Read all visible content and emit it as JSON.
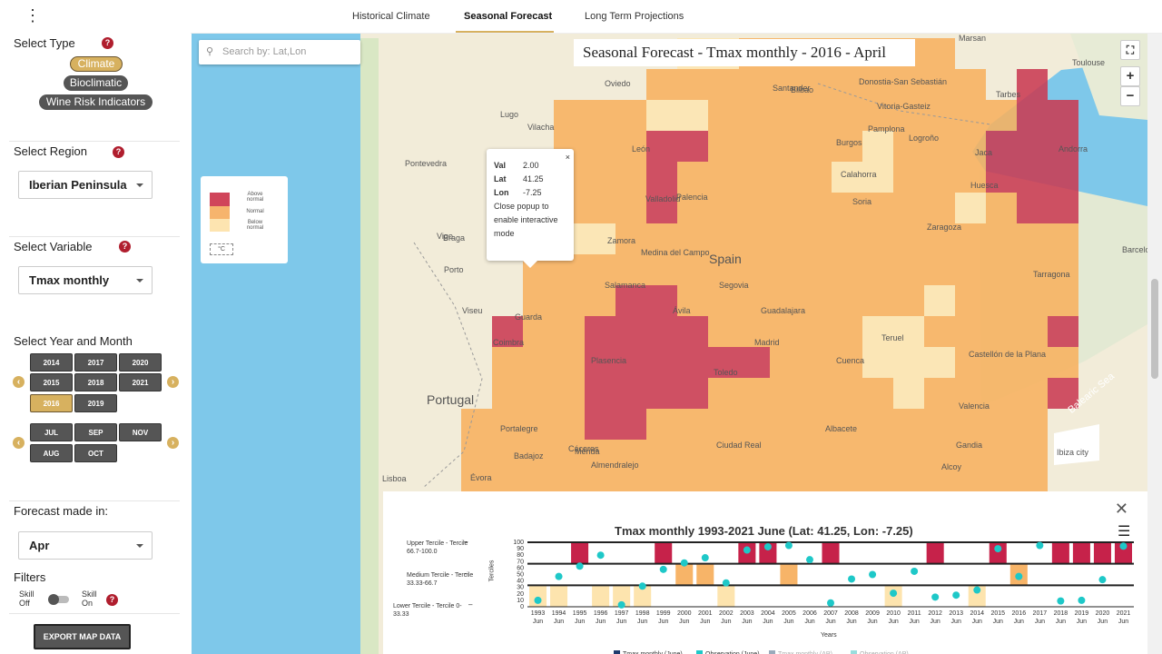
{
  "tabs": {
    "historical": "Historical Climate",
    "seasonal": "Seasonal Forecast",
    "long_term": "Long Term Projections"
  },
  "sidebar": {
    "select_type": {
      "label": "Select Type",
      "options": [
        "Climate",
        "Bioclimatic",
        "Wine Risk Indicators"
      ],
      "selected": "Climate"
    },
    "select_region": {
      "label": "Select Region",
      "value": "Iberian Peninsula"
    },
    "select_variable": {
      "label": "Select Variable",
      "value": "Tmax monthly"
    },
    "year_month": {
      "label": "Select Year and Month",
      "years": [
        "2014",
        "2017",
        "2020",
        "2015",
        "2018",
        "2021",
        "2016",
        "2019"
      ],
      "selected_year": "2016",
      "months": [
        "JUL",
        "SEP",
        "NOV",
        "AUG",
        "OCT"
      ]
    },
    "forecast": {
      "label": "Forecast made in:",
      "value": "Apr"
    },
    "filters": {
      "label": "Filters",
      "skill_off": "Skill Off",
      "skill_on": "Skill On"
    },
    "export_button": "EXPORT MAP DATA",
    "help_glyph": "?"
  },
  "map": {
    "search_placeholder": "Search by: Lat,Lon",
    "title": "Seasonal Forecast - Tmax monthly - 2016 - April",
    "legend": {
      "above": "Above normal",
      "normal": "Normal",
      "below": "Below normal",
      "unit": "°C"
    },
    "popup": {
      "val_label": "Val",
      "val": "2.00",
      "lat_label": "Lat",
      "lat": "41.25",
      "lon_label": "Lon",
      "lon": "-7.25",
      "note": "Close popup to enable interactive mode"
    },
    "labels": [
      "Spain",
      "Portugal",
      "Madrid",
      "Oviedo",
      "Bilbao",
      "Pamplona",
      "León",
      "Lugo",
      "Burgos",
      "Vigo",
      "Braga",
      "Porto",
      "Zaragoza",
      "Huesca",
      "Valladolid",
      "Salamanca",
      "Toledo",
      "Cáceres",
      "Badajoz",
      "Valencia",
      "Castellón de la Plana",
      "Barcelona",
      "Tarragona",
      "Andorra",
      "Toulouse",
      "Tarbes",
      "Marsan",
      "Jaca",
      "Lisboa",
      "Évora",
      "Viseu",
      "Guarda",
      "Coimbra",
      "Plasencia",
      "Segovia",
      "Ávila",
      "Guadalajara",
      "Cuenca",
      "Mérida",
      "Ciudad Real",
      "Albacete",
      "Alcoy",
      "Ibiza city",
      "Gandia",
      "Palencia",
      "Soria",
      "Teruel",
      "Santander",
      "Donostia-San Sebastián",
      "Vitoria-Gasteiz",
      "Calahorra",
      "Medina del Campo",
      "Pontevedra",
      "Portalegre",
      "Zamora",
      "Vilacha",
      "Balearic Sea",
      "Logroño",
      "Almendralejo"
    ]
  },
  "chart_data": {
    "type": "bar",
    "title": "Tmax monthly 1993-2021 June (Lat: 41.25, Lon: -7.25)",
    "ylabel": "Terciles",
    "ylim": [
      0,
      100
    ],
    "yticks": [
      "0",
      "10",
      "20",
      "30",
      "40",
      "50",
      "60",
      "70",
      "80",
      "90",
      "100"
    ],
    "x": [
      "1993",
      "1994",
      "1995",
      "1996",
      "1997",
      "1998",
      "1999",
      "2000",
      "2001",
      "2002",
      "2003",
      "2004",
      "2005",
      "2006",
      "2007",
      "2008",
      "2009",
      "2010",
      "2011",
      "2012",
      "2013",
      "2014",
      "2015",
      "2016",
      "2017",
      "2018",
      "2019",
      "2020",
      "2021"
    ],
    "xsub": "Jun",
    "xlabel": "Years",
    "tercile_labels": [
      "Upper Tercile - Tercile 66.7-100.0",
      "Medium Tercile - Tercile 33.33-66.7",
      "Lower Tercile - Tercile 0-33.33"
    ],
    "bar_tercile": [
      "low",
      "low",
      "high",
      "low",
      "low",
      "low",
      "high",
      "mid",
      "mid",
      "low",
      "high",
      "high",
      "mid",
      "none",
      "high",
      "none",
      "none",
      "low",
      "none",
      "high",
      "none",
      "low",
      "high",
      "mid",
      "none",
      "high",
      "high",
      "high",
      "high"
    ],
    "observations": [
      10,
      47,
      63,
      80,
      3,
      32,
      58,
      68,
      76,
      37,
      88,
      93,
      95,
      73,
      6,
      43,
      50,
      21,
      55,
      15,
      18,
      26,
      90,
      47,
      95,
      9,
      10,
      42,
      94
    ],
    "legend": [
      "Tmax monthly (June)",
      "Observation (June)",
      "Tmax monthly (AP)",
      "Observation (AP)"
    ]
  }
}
